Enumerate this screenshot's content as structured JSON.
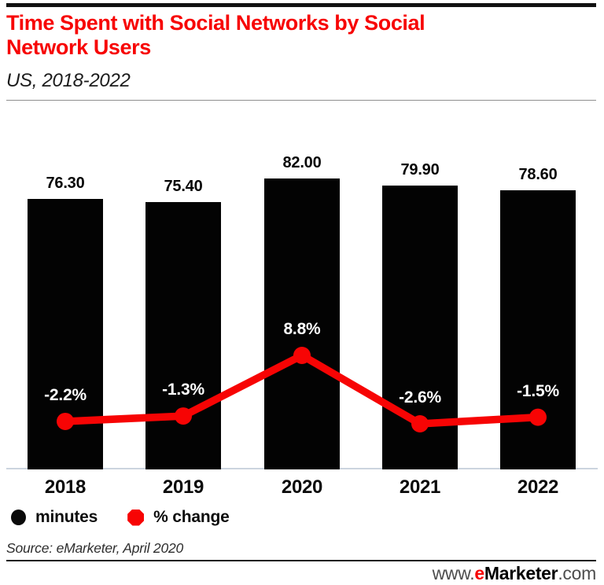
{
  "header": {
    "title": "Time Spent with Social Networks by Social Network Users",
    "subtitle": "US, 2018-2022"
  },
  "chart_data": {
    "type": "bar",
    "subtype": "bar-line-combo",
    "title": "Time Spent with Social Networks by Social Network Users",
    "subtitle": "US, 2018-2022",
    "categories": [
      "2018",
      "2019",
      "2020",
      "2021",
      "2022"
    ],
    "series": [
      {
        "name": "minutes",
        "type": "bar",
        "color": "#030303",
        "values": [
          76.3,
          75.4,
          82.0,
          79.9,
          78.6
        ],
        "labels": [
          "76.30",
          "75.40",
          "82.00",
          "79.90",
          "78.60"
        ]
      },
      {
        "name": "% change",
        "type": "line",
        "color": "#f70404",
        "values": [
          -2.2,
          -1.3,
          8.8,
          -2.6,
          -1.5
        ],
        "labels": [
          "-2.2%",
          "-1.3%",
          "8.8%",
          "-2.6%",
          "-1.5%"
        ]
      }
    ],
    "xlabel": "",
    "ylabel": "",
    "bar_ylim": [
      0,
      82
    ],
    "grid": false,
    "value_labels_visible": true,
    "legend_position": "bottom-left"
  },
  "legend": {
    "items": [
      {
        "label": "minutes",
        "color": "#0a0a0a",
        "marker": "circle"
      },
      {
        "label": "% change",
        "color": "#f70404",
        "marker": "octagon"
      }
    ]
  },
  "footer": {
    "source": "Source: eMarketer, April 2020",
    "site_prefix": "www.",
    "site_brand_e": "e",
    "site_brand_rest": "Marketer",
    "site_suffix": ".com"
  }
}
